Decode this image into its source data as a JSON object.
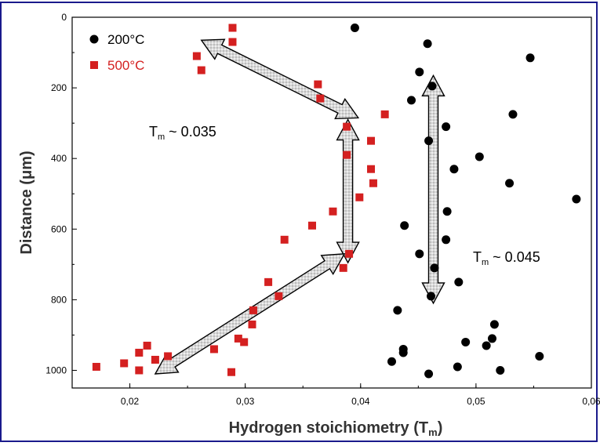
{
  "chart_data": {
    "type": "scatter",
    "title": "",
    "xlabel": "Hydrogen stoichiometry (T",
    "xlabel_sub": "m",
    "xlabel_close": ")",
    "ylabel": "Distance (μm)",
    "xlim": [
      0.015,
      0.06
    ],
    "ylim": [
      1050,
      0
    ],
    "y_inverted": true,
    "grid": false,
    "legend_position": "top-left",
    "x_ticks": [
      {
        "value": 0.02,
        "label": "0,02"
      },
      {
        "value": 0.03,
        "label": "0,03"
      },
      {
        "value": 0.04,
        "label": "0,04"
      },
      {
        "value": 0.05,
        "label": "0,05"
      },
      {
        "value": 0.06,
        "label": "0,06"
      }
    ],
    "y_ticks": [
      {
        "value": 0,
        "label": "0"
      },
      {
        "value": 200,
        "label": "200"
      },
      {
        "value": 400,
        "label": "400"
      },
      {
        "value": 600,
        "label": "600"
      },
      {
        "value": 800,
        "label": "800"
      },
      {
        "value": 1000,
        "label": "1000"
      }
    ],
    "series": [
      {
        "name": "200°C",
        "marker": "circle",
        "color": "#000000",
        "points": [
          [
            0.0395,
            30
          ],
          [
            0.0458,
            75
          ],
          [
            0.0547,
            115
          ],
          [
            0.0451,
            155
          ],
          [
            0.0462,
            195
          ],
          [
            0.0444,
            235
          ],
          [
            0.0532,
            275
          ],
          [
            0.0474,
            310
          ],
          [
            0.0459,
            350
          ],
          [
            0.0503,
            395
          ],
          [
            0.0481,
            430
          ],
          [
            0.0529,
            470
          ],
          [
            0.0587,
            515
          ],
          [
            0.0475,
            550
          ],
          [
            0.0438,
            590
          ],
          [
            0.0474,
            630
          ],
          [
            0.0451,
            670
          ],
          [
            0.0464,
            710
          ],
          [
            0.0485,
            750
          ],
          [
            0.0461,
            790
          ],
          [
            0.0432,
            830
          ],
          [
            0.0516,
            870
          ],
          [
            0.0514,
            910
          ],
          [
            0.0491,
            920
          ],
          [
            0.0509,
            930
          ],
          [
            0.0437,
            940
          ],
          [
            0.0437,
            950
          ],
          [
            0.0555,
            960
          ],
          [
            0.0427,
            975
          ],
          [
            0.0484,
            990
          ],
          [
            0.0521,
            1000
          ],
          [
            0.0459,
            1010
          ]
        ]
      },
      {
        "name": "500°C",
        "marker": "square",
        "color": "#d42020",
        "points": [
          [
            0.0289,
            30
          ],
          [
            0.0289,
            70
          ],
          [
            0.0258,
            110
          ],
          [
            0.0262,
            150
          ],
          [
            0.0363,
            190
          ],
          [
            0.0365,
            230
          ],
          [
            0.0421,
            275
          ],
          [
            0.0388,
            310
          ],
          [
            0.0409,
            350
          ],
          [
            0.0388,
            390
          ],
          [
            0.0409,
            430
          ],
          [
            0.0411,
            470
          ],
          [
            0.0399,
            510
          ],
          [
            0.0376,
            550
          ],
          [
            0.0358,
            590
          ],
          [
            0.0334,
            630
          ],
          [
            0.039,
            670
          ],
          [
            0.0385,
            710
          ],
          [
            0.032,
            750
          ],
          [
            0.0329,
            790
          ],
          [
            0.0307,
            830
          ],
          [
            0.0306,
            870
          ],
          [
            0.0294,
            910
          ],
          [
            0.0299,
            920
          ],
          [
            0.0215,
            930
          ],
          [
            0.0273,
            940
          ],
          [
            0.0208,
            950
          ],
          [
            0.0233,
            960
          ],
          [
            0.0222,
            970
          ],
          [
            0.0195,
            980
          ],
          [
            0.0171,
            990
          ],
          [
            0.0208,
            1000
          ],
          [
            0.0288,
            1005
          ]
        ]
      }
    ],
    "annotations": [
      {
        "text": "T",
        "sub": "m",
        "rest": " ~ 0.035"
      },
      {
        "text": "T",
        "sub": "m",
        "rest": " ~ 0.045"
      }
    ],
    "arrows": [
      {
        "from": [
          0.0262,
          65
        ],
        "to": [
          0.0398,
          285
        ],
        "direction": "double"
      },
      {
        "from": [
          0.0389,
          290
        ],
        "to": [
          0.0389,
          695
        ],
        "direction": "double"
      },
      {
        "from": [
          0.0222,
          1010
        ],
        "to": [
          0.0386,
          670
        ],
        "direction": "double"
      },
      {
        "from": [
          0.0463,
          165
        ],
        "to": [
          0.0463,
          810
        ],
        "direction": "double"
      }
    ]
  }
}
